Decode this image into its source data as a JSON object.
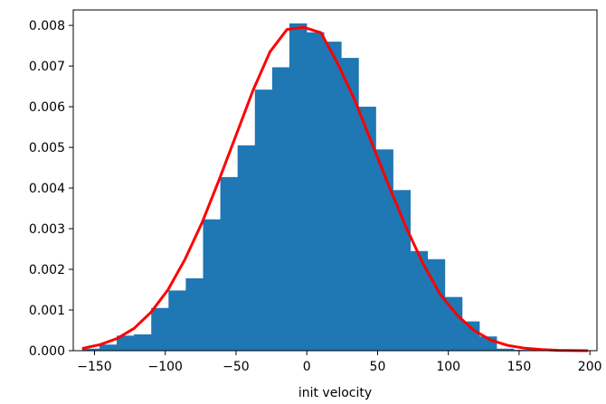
{
  "chart_data": {
    "type": "bar",
    "title": "",
    "xlabel": "init velocity",
    "ylabel": "",
    "xlim": [
      -165,
      205
    ],
    "ylim": [
      0,
      0.00838
    ],
    "x_ticks": [
      -150,
      -100,
      -50,
      0,
      50,
      100,
      150,
      200
    ],
    "x_tick_labels": [
      "−150",
      "−100",
      "−50",
      "0",
      "50",
      "100",
      "150",
      "200"
    ],
    "y_ticks": [
      0.0,
      0.001,
      0.002,
      0.003,
      0.004,
      0.005,
      0.006,
      0.007,
      0.008
    ],
    "y_tick_labels": [
      "0.000",
      "0.001",
      "0.002",
      "0.003",
      "0.004",
      "0.005",
      "0.006",
      "0.007",
      "0.008"
    ],
    "grid": false,
    "legend": "none",
    "histogram": {
      "color": "#1f77b4",
      "bins": [
        {
          "x0": -158.7,
          "x1": -146.5,
          "value": 5e-05
        },
        {
          "x0": -146.5,
          "x1": -134.3,
          "value": 0.00015
        },
        {
          "x0": -134.3,
          "x1": -122.1,
          "value": 0.00037
        },
        {
          "x0": -122.1,
          "x1": -109.9,
          "value": 0.0004
        },
        {
          "x0": -109.9,
          "x1": -97.7,
          "value": 0.00105
        },
        {
          "x0": -97.7,
          "x1": -85.5,
          "value": 0.00148
        },
        {
          "x0": -85.5,
          "x1": -73.3,
          "value": 0.00178
        },
        {
          "x0": -73.3,
          "x1": -61.1,
          "value": 0.00323
        },
        {
          "x0": -61.1,
          "x1": -48.9,
          "value": 0.00427
        },
        {
          "x0": -48.9,
          "x1": -36.7,
          "value": 0.00505
        },
        {
          "x0": -36.7,
          "x1": -24.5,
          "value": 0.00642
        },
        {
          "x0": -24.5,
          "x1": -12.3,
          "value": 0.00697
        },
        {
          "x0": -12.3,
          "x1": -0.1,
          "value": 0.00805
        },
        {
          "x0": -0.1,
          "x1": 12.1,
          "value": 0.00783
        },
        {
          "x0": 12.1,
          "x1": 24.3,
          "value": 0.0076
        },
        {
          "x0": 24.3,
          "x1": 36.5,
          "value": 0.0072
        },
        {
          "x0": 36.5,
          "x1": 48.7,
          "value": 0.006
        },
        {
          "x0": 48.7,
          "x1": 60.9,
          "value": 0.00495
        },
        {
          "x0": 60.9,
          "x1": 73.1,
          "value": 0.00395
        },
        {
          "x0": 73.1,
          "x1": 85.3,
          "value": 0.00245
        },
        {
          "x0": 85.3,
          "x1": 97.5,
          "value": 0.00225
        },
        {
          "x0": 97.5,
          "x1": 109.7,
          "value": 0.00132
        },
        {
          "x0": 109.7,
          "x1": 121.9,
          "value": 0.00072
        },
        {
          "x0": 121.9,
          "x1": 134.1,
          "value": 0.00035
        },
        {
          "x0": 134.1,
          "x1": 146.3,
          "value": 5e-05
        },
        {
          "x0": 146.3,
          "x1": 158.5,
          "value": 2e-05
        }
      ]
    },
    "curve": {
      "type": "line",
      "color": "#ff0000",
      "x": [
        -158,
        -146,
        -134,
        -122,
        -110,
        -98,
        -86,
        -74,
        -62,
        -50,
        -38,
        -26,
        -14,
        -2,
        10,
        22,
        34,
        46,
        58,
        70,
        82,
        94,
        106,
        118,
        130,
        142,
        154,
        166,
        178,
        198
      ],
      "y": [
        6e-05,
        0.00015,
        0.0003,
        0.00055,
        0.00095,
        0.0015,
        0.00225,
        0.00315,
        0.0042,
        0.0053,
        0.0064,
        0.00735,
        0.0079,
        0.00795,
        0.00782,
        0.00705,
        0.00615,
        0.0051,
        0.00405,
        0.00305,
        0.00215,
        0.0014,
        0.00088,
        0.0005,
        0.00026,
        0.00013,
        6e-05,
        3e-05,
        1e-05,
        0.0
      ]
    }
  }
}
